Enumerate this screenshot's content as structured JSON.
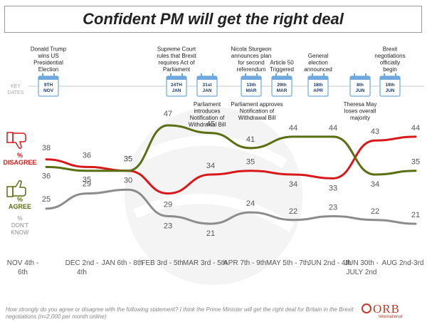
{
  "header": {
    "title": "Confident PM will get the right deal"
  },
  "key_dates_label": "KEY\nDATES",
  "colors": {
    "disagree": "#d7191c",
    "agree": "#5a6e12",
    "dont_know": "#8c8c8c",
    "axis": "#c8c8c8",
    "date_text": "#1f3a6e"
  },
  "legend": {
    "disagree": "%\nDISAGREE",
    "agree": "%\nAGREE",
    "dont_know": "%\nDON'T\nKNOW"
  },
  "events": [
    {
      "date": "9TH\nNOV",
      "text": "Donald Trump\nwins US\nPresidential\nElection",
      "text_pos": "above"
    },
    {
      "date": "24TH\nJAN",
      "text": "Supreme Court\nrules that Brexit\nrequires Act of\nParliament",
      "text_pos": "above"
    },
    {
      "date": "31st\nJAN",
      "text": "Parliament\nintroduces\nNotification of\nWithdrawal Bill",
      "text_pos": "below"
    },
    {
      "date": "13th\nMAR",
      "text": "Nicola Sturgeon\nannounces plan\nfor second\nreferendum",
      "text_pos": "above"
    },
    {
      "date": "29th\nMAR",
      "text": "Article 50\nTriggered",
      "text_pos": "above"
    },
    {
      "date": "18th\nAPR",
      "text": "General\nelection\nannounced",
      "text_pos": "above"
    },
    {
      "date": "8th\nJUN",
      "text": "Theresa May\nloses overall\nmajority",
      "text_pos": "below"
    },
    {
      "date": "19th\nJUN",
      "text": "Brexit\nnegotiations\nofficially\nbegin",
      "text_pos": "above"
    }
  ],
  "parliament_approves": "Parliament approves\nNotification of\nWithdrawal Bill",
  "chart_data": {
    "type": "line",
    "title": "Confident PM will get the right deal",
    "categories": [
      "NOV 4th -\n6th",
      "DEC 2nd -\n4th",
      "JAN 6th - 8th",
      "FEB 3rd - 5th",
      "MAR 3rd - 5th",
      "APR 7th - 9th",
      "MAY 5th - 7th",
      "JUN 2nd - 4th",
      "JUN 30th -\nJULY 2nd",
      "AUG 2nd-3rd"
    ],
    "series": [
      {
        "name": "% DISAGREE",
        "values": [
          38,
          36,
          35,
          29,
          34,
          35,
          34,
          33,
          43,
          44
        ]
      },
      {
        "name": "% AGREE",
        "values": [
          36,
          35,
          35,
          47,
          45,
          41,
          44,
          44,
          34,
          35
        ]
      },
      {
        "name": "% DON'T KNOW",
        "values": [
          25,
          29,
          30,
          23,
          21,
          24,
          22,
          23,
          22,
          21
        ]
      }
    ],
    "ylim": [
      18,
      50
    ],
    "xlabel": "",
    "ylabel": ""
  },
  "footer": {
    "question": "How strongly do you agree or disagree with the following statement?  I think the Prime Minister will get the right deal for Britain in the Brexit negotiations (n=2,000 per month online)"
  },
  "logo": {
    "name": "ORB",
    "sub": "International"
  }
}
